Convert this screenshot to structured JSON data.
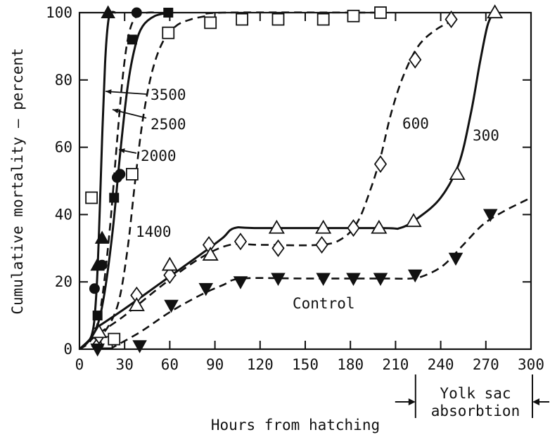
{
  "chart_data": {
    "type": "line",
    "title": "",
    "xlabel": "Hours from hatching",
    "ylabel": "Cumulative mortality – percent",
    "xlim": [
      0,
      300
    ],
    "ylim": [
      0,
      100
    ],
    "xticks": [
      0,
      30,
      60,
      90,
      120,
      150,
      180,
      210,
      240,
      270,
      300
    ],
    "yticks": [
      0,
      20,
      40,
      60,
      80,
      100
    ],
    "xtick_labels": [
      "0",
      "30",
      "60",
      "90",
      "120",
      "150",
      "180",
      "210",
      "240",
      "270",
      "300"
    ],
    "ytick_labels": [
      "0",
      "20",
      "40",
      "60",
      "80",
      "100"
    ],
    "grid": false,
    "annotations": [
      {
        "text": "Yolk sac",
        "line": 1
      },
      {
        "text": "absorbtion",
        "line": 2
      }
    ],
    "annotation_range": [
      220,
      300
    ],
    "series": [
      {
        "name": "3500",
        "marker": "triangle-filled",
        "line": "solid",
        "points": [
          [
            12,
            25
          ],
          [
            15,
            33
          ],
          [
            19,
            100
          ]
        ],
        "curve": [
          [
            0,
            0
          ],
          [
            8,
            4
          ],
          [
            11,
            15
          ],
          [
            13,
            35
          ],
          [
            15,
            62
          ],
          [
            17,
            85
          ],
          [
            19,
            97
          ],
          [
            21,
            100
          ],
          [
            24,
            100
          ]
        ]
      },
      {
        "name": "2500",
        "marker": "circle-filled",
        "line": "dashed",
        "points": [
          [
            10,
            18
          ],
          [
            15,
            25
          ],
          [
            25,
            51
          ],
          [
            27,
            52
          ],
          [
            38,
            100
          ]
        ],
        "curve": [
          [
            0,
            0
          ],
          [
            8,
            3
          ],
          [
            14,
            12
          ],
          [
            20,
            35
          ],
          [
            25,
            62
          ],
          [
            29,
            82
          ],
          [
            33,
            94
          ],
          [
            38,
            99
          ],
          [
            45,
            100
          ],
          [
            52,
            100
          ]
        ]
      },
      {
        "name": "2000",
        "marker": "square-filled",
        "line": "solid",
        "points": [
          [
            12,
            10
          ],
          [
            23,
            45
          ],
          [
            35,
            92
          ],
          [
            59,
            100
          ]
        ],
        "curve": [
          [
            0,
            0
          ],
          [
            10,
            5
          ],
          [
            16,
            15
          ],
          [
            22,
            35
          ],
          [
            27,
            58
          ],
          [
            32,
            78
          ],
          [
            37,
            90
          ],
          [
            42,
            96
          ],
          [
            50,
            99
          ],
          [
            60,
            100
          ]
        ]
      },
      {
        "name": "1400",
        "marker": "square-open",
        "line": "dashed",
        "points": [
          [
            8,
            45
          ],
          [
            18,
            2
          ],
          [
            23,
            3
          ],
          [
            35,
            52
          ],
          [
            59,
            94
          ],
          [
            87,
            97
          ],
          [
            108,
            98
          ],
          [
            132,
            98
          ],
          [
            162,
            98
          ],
          [
            182,
            99
          ],
          [
            200,
            100
          ]
        ],
        "curve": [
          [
            10,
            3
          ],
          [
            18,
            6
          ],
          [
            26,
            14
          ],
          [
            32,
            30
          ],
          [
            37,
            50
          ],
          [
            42,
            68
          ],
          [
            48,
            82
          ],
          [
            55,
            91
          ],
          [
            64,
            96
          ],
          [
            74,
            98
          ],
          [
            84,
            99
          ],
          [
            95,
            100
          ],
          [
            200,
            100
          ]
        ]
      },
      {
        "name": "600",
        "marker": "diamond-open",
        "line": "dashed",
        "points": [
          [
            12,
            1
          ],
          [
            13,
            4
          ],
          [
            38,
            16
          ],
          [
            60,
            22
          ],
          [
            86,
            31
          ],
          [
            107,
            32
          ],
          [
            132,
            30
          ],
          [
            161,
            31
          ],
          [
            182,
            36
          ],
          [
            200,
            55
          ],
          [
            223,
            86
          ],
          [
            247,
            98
          ]
        ],
        "curve": [
          [
            0,
            0
          ],
          [
            14,
            5
          ],
          [
            30,
            10
          ],
          [
            55,
            19
          ],
          [
            80,
            27
          ],
          [
            100,
            31
          ],
          [
            120,
            31
          ],
          [
            160,
            31
          ],
          [
            175,
            33
          ],
          [
            185,
            38
          ],
          [
            193,
            47
          ],
          [
            200,
            57
          ],
          [
            207,
            70
          ],
          [
            215,
            81
          ],
          [
            225,
            90
          ],
          [
            237,
            95
          ],
          [
            250,
            98
          ]
        ]
      },
      {
        "name": "300",
        "marker": "triangle-open",
        "line": "solid",
        "points": [
          [
            13,
            5
          ],
          [
            38,
            13
          ],
          [
            60,
            25
          ],
          [
            87,
            28
          ],
          [
            131,
            36
          ],
          [
            162,
            36
          ],
          [
            199,
            36
          ],
          [
            222,
            38
          ],
          [
            251,
            52
          ],
          [
            276,
            100
          ]
        ],
        "curve": [
          [
            10,
            6
          ],
          [
            30,
            12
          ],
          [
            55,
            20
          ],
          [
            80,
            28
          ],
          [
            95,
            33
          ],
          [
            103,
            36
          ],
          [
            120,
            36
          ],
          [
            200,
            36
          ],
          [
            213,
            36
          ],
          [
            225,
            39
          ],
          [
            240,
            45
          ],
          [
            252,
            55
          ],
          [
            260,
            70
          ],
          [
            266,
            85
          ],
          [
            271,
            96
          ],
          [
            275,
            100
          ]
        ]
      },
      {
        "name": "Control",
        "marker": "triangle-down-filled",
        "line": "dashed",
        "points": [
          [
            12,
            0
          ],
          [
            40,
            1
          ],
          [
            61,
            13
          ],
          [
            84,
            18
          ],
          [
            107,
            20
          ],
          [
            132,
            21
          ],
          [
            162,
            21
          ],
          [
            182,
            21
          ],
          [
            200,
            21
          ],
          [
            223,
            22
          ],
          [
            250,
            27
          ],
          [
            273,
            40
          ]
        ],
        "curve": [
          [
            20,
            0
          ],
          [
            40,
            5
          ],
          [
            60,
            11
          ],
          [
            80,
            16
          ],
          [
            95,
            19
          ],
          [
            108,
            21
          ],
          [
            150,
            21
          ],
          [
            200,
            21
          ],
          [
            220,
            21
          ],
          [
            230,
            22
          ],
          [
            242,
            25
          ],
          [
            255,
            31
          ],
          [
            268,
            37
          ],
          [
            282,
            41
          ],
          [
            300,
            45
          ]
        ]
      }
    ],
    "series_label_text": {
      "3500": "3500",
      "2500": "2500",
      "2000": "2000",
      "1400": "1400",
      "600": "600",
      "300": "300",
      "Control": "Control"
    }
  }
}
